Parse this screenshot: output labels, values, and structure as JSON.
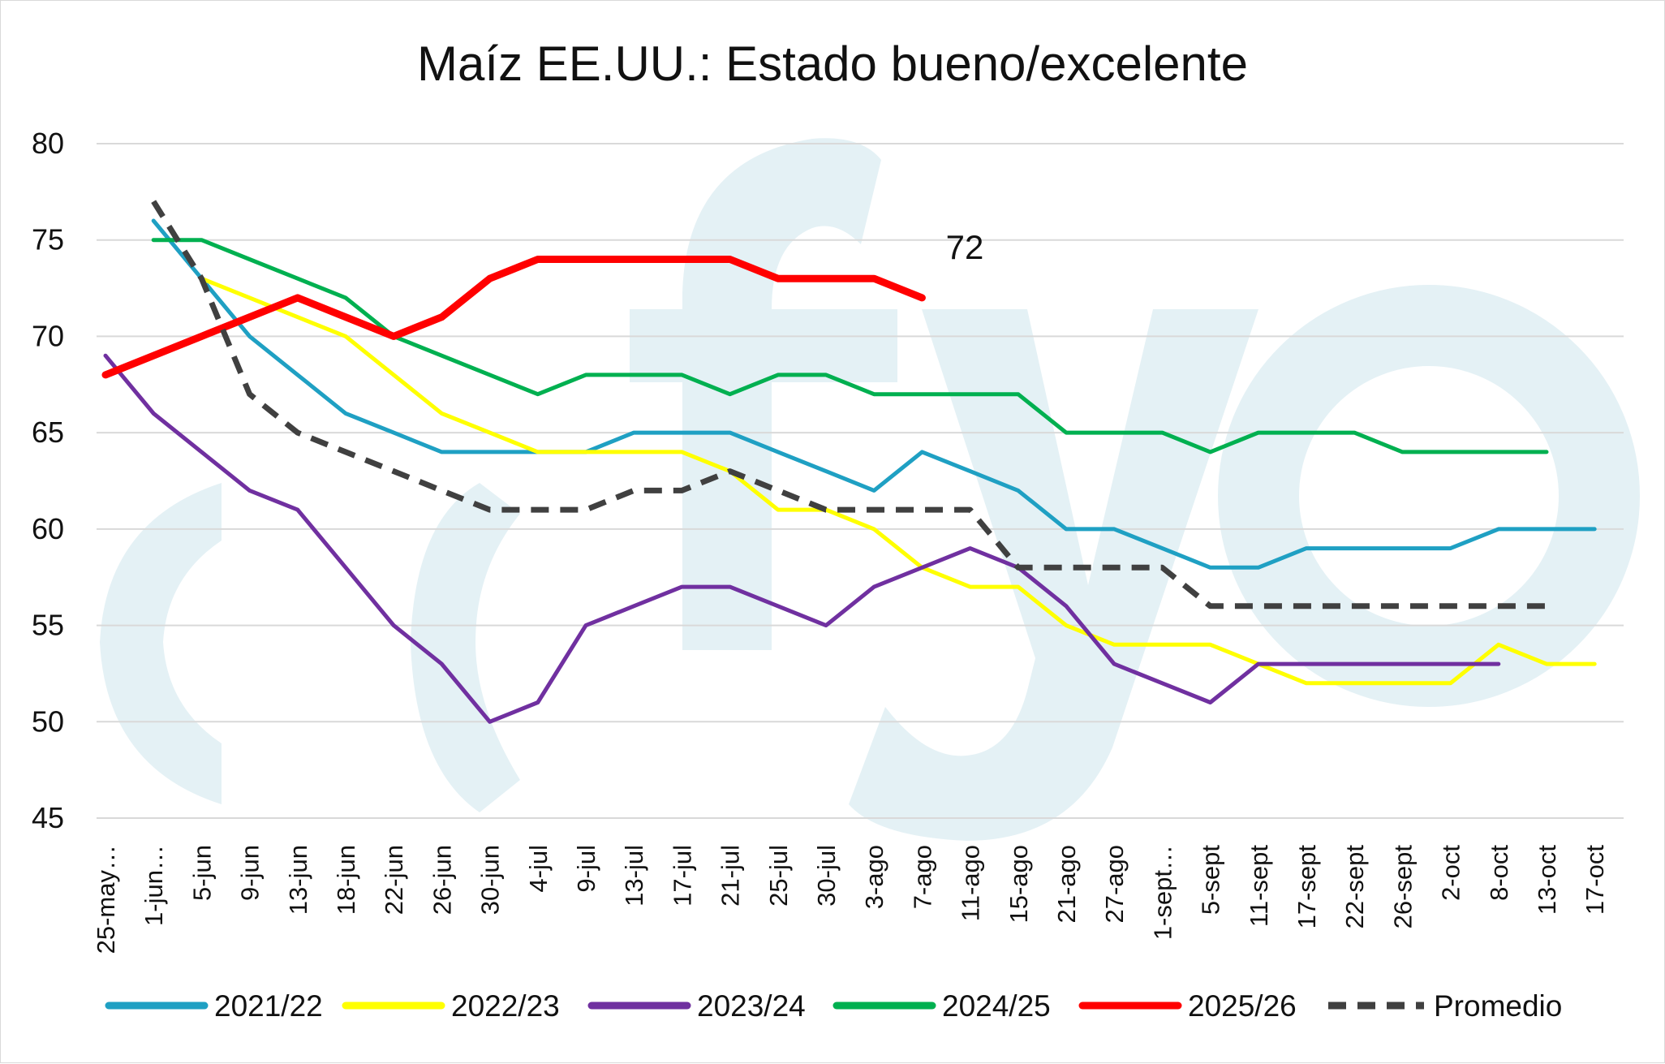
{
  "chart_data": {
    "type": "line",
    "title": "Maíz EE.UU.: Estado bueno/excelente",
    "xlabel": "",
    "ylabel": "",
    "ylim": [
      45,
      80
    ],
    "yticks": [
      80,
      75,
      70,
      65,
      60,
      55,
      50,
      45
    ],
    "grid": true,
    "legend_position": "bottom",
    "categories": [
      "25-may…",
      "1-jun…",
      "5-jun",
      "9-jun",
      "13-jun",
      "18-jun",
      "22-jun",
      "26-jun",
      "30-jun",
      "4-jul",
      "9-jul",
      "13-jul",
      "17-jul",
      "21-jul",
      "25-jul",
      "30-jul",
      "3-ago",
      "7-ago",
      "11-ago",
      "15-ago",
      "21-ago",
      "27-ago",
      "1-sept…",
      "5-sept",
      "11-sept",
      "17-sept",
      "22-sept",
      "26-sept",
      "2-oct",
      "8-oct",
      "13-oct",
      "17-oct"
    ],
    "series": [
      {
        "name": "2021/22",
        "color": "#1FA0C3",
        "dash": false,
        "width": 5,
        "values": [
          null,
          76,
          73,
          70,
          68,
          66,
          65,
          64,
          64,
          64,
          64,
          65,
          65,
          65,
          64,
          63,
          62,
          64,
          63,
          62,
          60,
          60,
          59,
          58,
          58,
          59,
          59,
          59,
          59,
          60,
          60,
          60
        ]
      },
      {
        "name": "2022/23",
        "color": "#FFFF00",
        "dash": false,
        "width": 5,
        "values": [
          null,
          null,
          73,
          72,
          71,
          70,
          68,
          66,
          65,
          64,
          64,
          64,
          64,
          63,
          61,
          61,
          60,
          58,
          57,
          57,
          55,
          54,
          54,
          54,
          53,
          52,
          52,
          52,
          52,
          54,
          53,
          53
        ]
      },
      {
        "name": "2023/24",
        "color": "#7030A0",
        "dash": false,
        "width": 5,
        "values": [
          69,
          66,
          64,
          62,
          61,
          58,
          55,
          53,
          50,
          51,
          55,
          56,
          57,
          57,
          56,
          55,
          57,
          58,
          59,
          58,
          56,
          53,
          52,
          51,
          53,
          53,
          53,
          53,
          53,
          53,
          null,
          null
        ]
      },
      {
        "name": "2024/25",
        "color": "#00B050",
        "dash": false,
        "width": 5,
        "values": [
          null,
          75,
          75,
          74,
          73,
          72,
          70,
          69,
          68,
          67,
          68,
          68,
          68,
          67,
          68,
          68,
          67,
          67,
          67,
          67,
          65,
          65,
          65,
          64,
          65,
          65,
          65,
          64,
          64,
          64,
          64,
          null
        ]
      },
      {
        "name": "2025/26",
        "color": "#FF0000",
        "dash": false,
        "width": 9,
        "values": [
          68,
          69,
          70,
          71,
          72,
          71,
          70,
          71,
          73,
          74,
          74,
          74,
          74,
          74,
          73,
          73,
          73,
          72,
          null,
          null,
          null,
          null,
          null,
          null,
          null,
          null,
          null,
          null,
          null,
          null,
          null,
          null
        ]
      },
      {
        "name": "Promedio",
        "color": "#404040",
        "dash": true,
        "width": 7,
        "values": [
          null,
          77,
          73,
          67,
          65,
          64,
          63,
          62,
          61,
          61,
          61,
          62,
          62,
          63,
          62,
          61,
          61,
          61,
          61,
          58,
          58,
          58,
          58,
          56,
          56,
          56,
          56,
          56,
          56,
          56,
          56,
          null
        ]
      }
    ],
    "annotations": [
      {
        "text": "72"
      }
    ],
    "watermark": "fyo"
  }
}
